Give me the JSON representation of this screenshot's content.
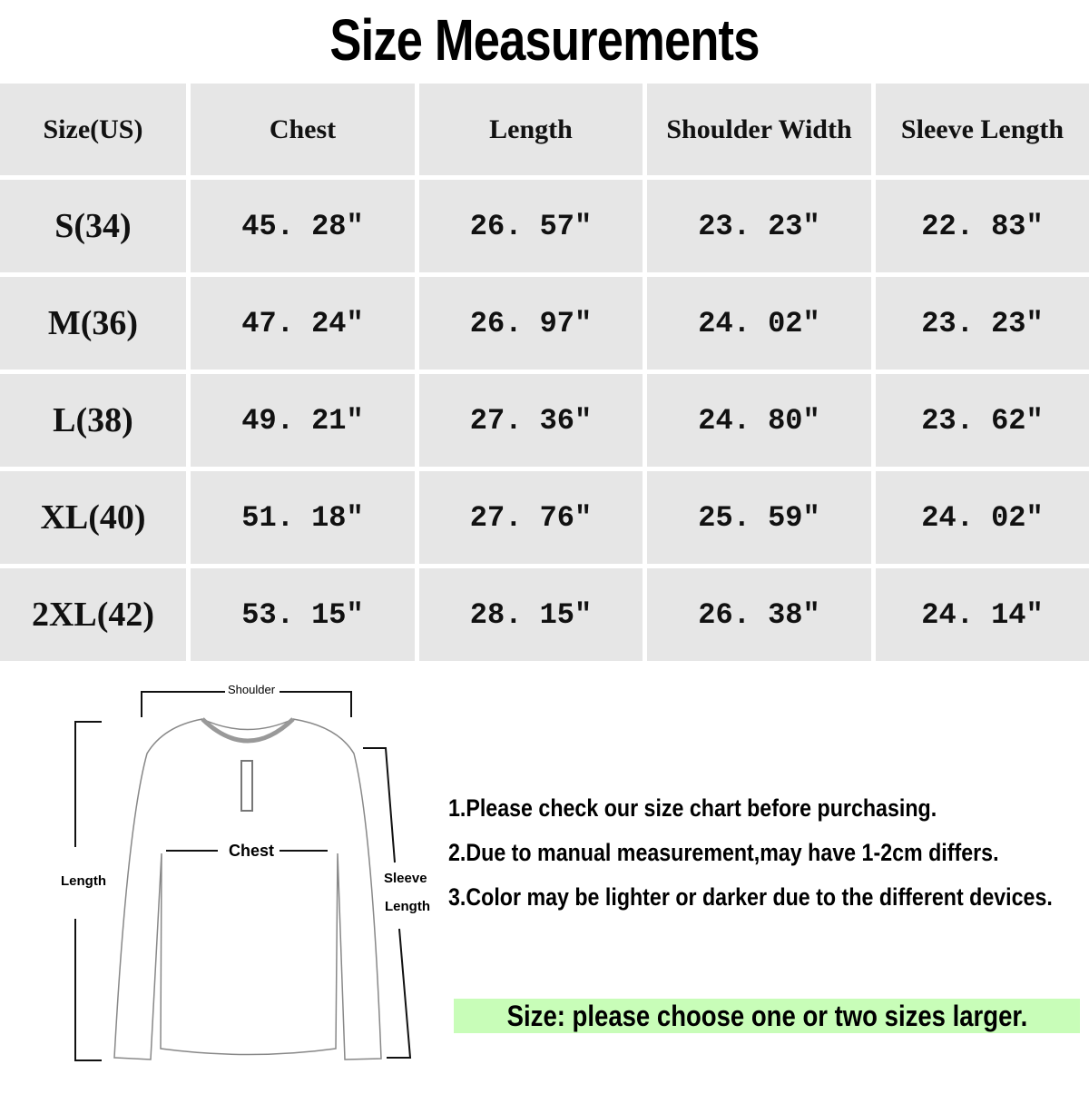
{
  "title": "Size Measurements",
  "table": {
    "headers": [
      "Size(US)",
      "Chest",
      "Length",
      "Shoulder Width",
      "Sleeve Length"
    ],
    "rows": [
      [
        "S(34)",
        "45. 28″",
        "26. 57″",
        "23. 23″",
        "22. 83″"
      ],
      [
        "M(36)",
        "47. 24″",
        "26. 97″",
        "24. 02″",
        "23. 23″"
      ],
      [
        "L(38)",
        "49. 21″",
        "27. 36″",
        "24. 80″",
        "23. 62″"
      ],
      [
        "XL(40)",
        "51. 18″",
        "27. 76″",
        "25. 59″",
        "24. 02″"
      ],
      [
        "2XL(42)",
        "53. 15″",
        "28. 15″",
        "26. 38″",
        "24. 14″"
      ]
    ]
  },
  "diagram": {
    "shoulder": "Shoulder",
    "chest": "Chest",
    "length": "Length",
    "sleeve_1": "Sleeve",
    "sleeve_2": "Length"
  },
  "notes": [
    "1.Please check our size chart before purchasing.",
    "2.Due to manual measurement,may have 1-2cm differs.",
    "3.Color may be lighter or darker due to the different devices."
  ],
  "banner": "Size: please choose one or two sizes larger.",
  "colors": {
    "cell_bg": "#e6e6e6",
    "banner_bg": "#c8fdb8"
  }
}
